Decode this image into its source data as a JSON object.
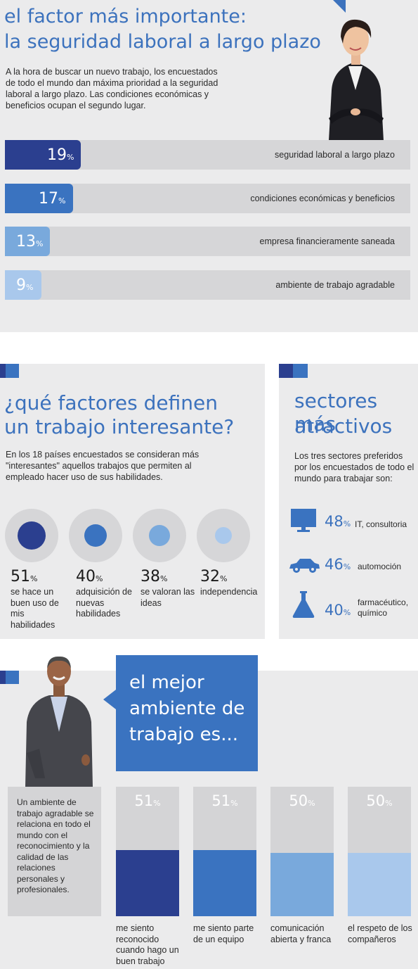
{
  "section1": {
    "title_line1": "el factor más importante:",
    "title_line2": "la seguridad laboral a largo plazo",
    "intro": "A la hora de buscar un nuevo trabajo, los encuestados de todo el mundo dan máxima prioridad a la seguridad laboral a largo plazo. Las condiciones económicas y beneficios ocupan el segundo lugar.",
    "percent_sign": "%",
    "bars": [
      {
        "value": "19",
        "label": "seguridad laboral a largo plazo",
        "color": "#2b3f8f"
      },
      {
        "value": "17",
        "label": "condiciones económicas y beneficios",
        "color": "#3a73c0"
      },
      {
        "value": "13",
        "label": "empresa financieramente saneada",
        "color": "#79a9dc"
      },
      {
        "value": "9",
        "label": "ambiente de trabajo agradable",
        "color": "#a9c8ec"
      }
    ]
  },
  "section2": {
    "title_line1": "¿qué factores definen",
    "title_line2": "un trabajo interesante?",
    "intro": "En los 18 países encuestados se consideran más \"interesantes\" aquellos trabajos que permiten al empleado hacer uso de sus habilidades.",
    "percent_sign": "%",
    "items": [
      {
        "value": "51",
        "label": "se hace un buen uso de mis habilidades",
        "color": "#2b3f8f"
      },
      {
        "value": "40",
        "label": "adquisición de nuevas habilidades",
        "color": "#3a73c0"
      },
      {
        "value": "38",
        "label": "se valoran las ideas",
        "color": "#79a9dc"
      },
      {
        "value": "32",
        "label": "independencia",
        "color": "#a9c8ec"
      }
    ]
  },
  "section3": {
    "title_line1": "sectores más",
    "title_line2": "atractivos",
    "intro": "Los tres sectores preferidos por los encuestados de todo el mundo para trabajar son:",
    "percent_sign": "%",
    "items": [
      {
        "value": "48",
        "label": "IT, consultoria",
        "icon": "monitor-icon"
      },
      {
        "value": "46",
        "label": "automoción",
        "icon": "car-icon"
      },
      {
        "value": "40",
        "label": "farmacéutico, químico",
        "icon": "flask-icon"
      }
    ]
  },
  "section4": {
    "callout_line1": "el mejor",
    "callout_line2": "ambiente de",
    "callout_line3": "trabajo es...",
    "side_text": "Un ambiente de trabajo agradable se relaciona en todo el mundo con el reconocimiento y la calidad de las relaciones personales y profesionales.",
    "percent_sign": "%",
    "bars": [
      {
        "value": "51",
        "label": "me siento reconocido cuando hago un buen trabajo",
        "color": "#2b3f8f"
      },
      {
        "value": "51",
        "label": "me siento parte de un equipo",
        "color": "#3a73c0"
      },
      {
        "value": "50",
        "label": "comunicación abierta y franca",
        "color": "#79a9dc"
      },
      {
        "value": "50",
        "label": "el respeto de los compañeros",
        "color": "#a9c8ec"
      }
    ]
  }
}
